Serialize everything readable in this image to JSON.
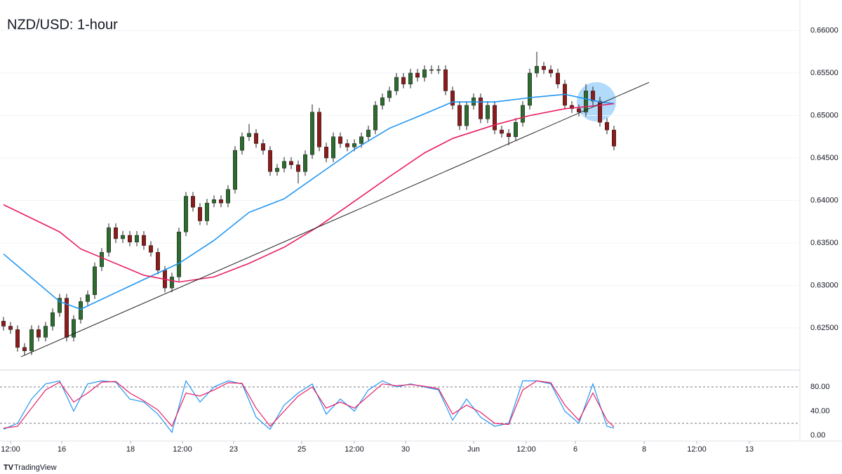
{
  "header": {
    "title": "NZD/USD: 1-hour",
    "brand": "TradingView"
  },
  "chart_data": [
    {
      "type": "candlestick",
      "x_start": 0,
      "opens": [
        0.6258,
        0.6252,
        0.6248,
        0.6227,
        0.6223,
        0.6248,
        0.6239,
        0.6252,
        0.6268,
        0.6285,
        0.6239,
        0.626,
        0.6281,
        0.6289,
        0.6322,
        0.6339,
        0.6368,
        0.6355,
        0.6359,
        0.6351,
        0.6359,
        0.6347,
        0.6339,
        0.6318,
        0.6297,
        0.631,
        0.6363,
        0.6405,
        0.6392,
        0.6376,
        0.6397,
        0.6401,
        0.6397,
        0.6413,
        0.6459,
        0.6475,
        0.6479,
        0.6467,
        0.6459,
        0.6434,
        0.6438,
        0.6446,
        0.6442,
        0.6434,
        0.6454,
        0.6504,
        0.6463,
        0.645,
        0.6475,
        0.6467,
        0.6463,
        0.6467,
        0.6475,
        0.6483,
        0.6512,
        0.6521,
        0.6529,
        0.6545,
        0.6537,
        0.655,
        0.6545,
        0.6554,
        0.6554,
        0.6554,
        0.6529,
        0.6512,
        0.6488,
        0.6512,
        0.6521,
        0.6496,
        0.6512,
        0.6483,
        0.6479,
        0.6475,
        0.6492,
        0.6512,
        0.655,
        0.6558,
        0.6554,
        0.655,
        0.6537,
        0.6512,
        0.6508,
        0.6504,
        0.6529,
        0.6517,
        0.6492,
        0.6483
      ],
      "highs": [
        0.6263,
        0.6257,
        0.6253,
        0.6232,
        0.6253,
        0.6253,
        0.6257,
        0.6273,
        0.629,
        0.629,
        0.6265,
        0.6286,
        0.6294,
        0.6327,
        0.6344,
        0.6373,
        0.6373,
        0.6364,
        0.6364,
        0.6364,
        0.6364,
        0.6352,
        0.6344,
        0.6323,
        0.6315,
        0.6368,
        0.641,
        0.641,
        0.6397,
        0.6402,
        0.6406,
        0.6406,
        0.6418,
        0.6464,
        0.648,
        0.649,
        0.6484,
        0.6472,
        0.6464,
        0.6443,
        0.6451,
        0.6451,
        0.6447,
        0.6459,
        0.6513,
        0.6509,
        0.6468,
        0.648,
        0.648,
        0.6472,
        0.6472,
        0.648,
        0.6488,
        0.6517,
        0.6526,
        0.6534,
        0.655,
        0.655,
        0.6555,
        0.6555,
        0.6559,
        0.6559,
        0.6559,
        0.6559,
        0.6534,
        0.6517,
        0.6517,
        0.6526,
        0.6526,
        0.6517,
        0.6517,
        0.6488,
        0.6484,
        0.6497,
        0.6517,
        0.6555,
        0.6575,
        0.6563,
        0.6559,
        0.6555,
        0.6542,
        0.6517,
        0.6513,
        0.6537,
        0.6534,
        0.6522,
        0.6497,
        0.6488
      ],
      "lows": [
        0.6247,
        0.6243,
        0.6222,
        0.6218,
        0.6218,
        0.6234,
        0.6234,
        0.6247,
        0.6263,
        0.6234,
        0.6234,
        0.6255,
        0.6276,
        0.6284,
        0.6317,
        0.6334,
        0.635,
        0.635,
        0.6346,
        0.6346,
        0.6342,
        0.6334,
        0.6313,
        0.6292,
        0.6292,
        0.6305,
        0.6358,
        0.6387,
        0.6371,
        0.6371,
        0.6392,
        0.6392,
        0.6392,
        0.6408,
        0.6454,
        0.647,
        0.6462,
        0.6454,
        0.6429,
        0.6429,
        0.6433,
        0.6437,
        0.642,
        0.6429,
        0.6449,
        0.6458,
        0.6445,
        0.6445,
        0.6462,
        0.6458,
        0.6458,
        0.6462,
        0.647,
        0.6478,
        0.6507,
        0.6516,
        0.6524,
        0.6532,
        0.6532,
        0.654,
        0.654,
        0.6549,
        0.6549,
        0.6524,
        0.6507,
        0.6483,
        0.6483,
        0.6507,
        0.6491,
        0.6491,
        0.6478,
        0.6474,
        0.6465,
        0.647,
        0.6487,
        0.6507,
        0.6545,
        0.6549,
        0.6545,
        0.6532,
        0.6507,
        0.6503,
        0.6499,
        0.6499,
        0.6512,
        0.6487,
        0.6478,
        0.6459
      ],
      "closes": [
        0.6252,
        0.6248,
        0.6227,
        0.6223,
        0.6248,
        0.6239,
        0.6252,
        0.6268,
        0.6285,
        0.6239,
        0.626,
        0.6281,
        0.6289,
        0.6322,
        0.6339,
        0.6368,
        0.6355,
        0.6359,
        0.6351,
        0.6359,
        0.6347,
        0.6339,
        0.6318,
        0.6297,
        0.631,
        0.6363,
        0.6405,
        0.6392,
        0.6376,
        0.6397,
        0.6401,
        0.6397,
        0.6413,
        0.6459,
        0.6475,
        0.6479,
        0.6467,
        0.6459,
        0.6434,
        0.6438,
        0.6446,
        0.6442,
        0.6434,
        0.6454,
        0.6504,
        0.6463,
        0.645,
        0.6475,
        0.6467,
        0.6463,
        0.6467,
        0.6475,
        0.6483,
        0.6512,
        0.6521,
        0.6529,
        0.6545,
        0.6537,
        0.655,
        0.6545,
        0.6554,
        0.6554,
        0.6554,
        0.6529,
        0.6512,
        0.6488,
        0.6512,
        0.6521,
        0.6496,
        0.6512,
        0.6483,
        0.6479,
        0.6475,
        0.6492,
        0.6512,
        0.655,
        0.6558,
        0.6554,
        0.655,
        0.6537,
        0.6512,
        0.6508,
        0.6504,
        0.6529,
        0.6517,
        0.6492,
        0.6483,
        0.6464
      ],
      "up_color": "#2e6b30",
      "down_color": "#8b1c1c",
      "wick_color": "#222222",
      "overlays": [
        {
          "x": [
            0,
            8,
            11,
            20,
            25,
            30,
            35,
            40,
            45,
            50,
            55,
            60,
            64,
            70,
            75,
            80,
            85,
            87
          ],
          "values": [
            0.6337,
            0.6281,
            0.6272,
            0.6307,
            0.6326,
            0.6353,
            0.6386,
            0.6402,
            0.6431,
            0.646,
            0.6485,
            0.6502,
            0.6516,
            0.6516,
            0.6521,
            0.6525,
            0.6516,
            0.6514
          ],
          "color": "#2196f3"
        },
        {
          "x": [
            0,
            8,
            11,
            20,
            25,
            30,
            35,
            40,
            45,
            50,
            55,
            60,
            64,
            70,
            75,
            80,
            85,
            87
          ],
          "values": [
            0.6395,
            0.6363,
            0.6343,
            0.6312,
            0.6304,
            0.631,
            0.6326,
            0.6345,
            0.637,
            0.6399,
            0.6428,
            0.6456,
            0.6473,
            0.6489,
            0.65,
            0.6508,
            0.6512,
            0.6514
          ],
          "color": "#e91e63"
        },
        {
          "x": [
            2.5,
            92
          ],
          "values": [
            0.6216,
            0.6539
          ],
          "color": "#222222"
        }
      ],
      "xlim": [
        -0.5,
        113.5
      ],
      "ylim": [
        0.6202,
        0.6636
      ],
      "yticks": [
        {
          "value": 0.625,
          "label": "0.62500"
        },
        {
          "value": 0.63,
          "label": "0.63000"
        },
        {
          "value": 0.635,
          "label": "0.63500"
        },
        {
          "value": 0.64,
          "label": "0.64000"
        },
        {
          "value": 0.645,
          "label": "0.64500"
        },
        {
          "value": 0.65,
          "label": "0.65000"
        },
        {
          "value": 0.655,
          "label": "0.65500"
        },
        {
          "value": 0.66,
          "label": "0.66000"
        }
      ]
    },
    {
      "type": "line",
      "x": [
        0,
        2,
        4,
        6,
        8,
        10,
        12,
        14,
        16,
        18,
        20,
        22,
        24,
        26,
        28,
        30,
        32,
        34,
        36,
        38,
        40,
        42,
        44,
        46,
        48,
        50,
        52,
        54,
        56,
        58,
        60,
        62,
        64,
        66,
        68,
        70,
        72,
        74,
        76,
        78,
        80,
        82,
        84,
        86,
        87
      ],
      "series": [
        {
          "color": "#2196f3",
          "values": [
            10,
            20,
            60,
            85,
            90,
            40,
            85,
            90,
            88,
            60,
            55,
            35,
            5,
            90,
            55,
            80,
            90,
            85,
            30,
            10,
            50,
            70,
            85,
            35,
            60,
            40,
            75,
            90,
            80,
            85,
            80,
            75,
            25,
            60,
            30,
            15,
            20,
            90,
            90,
            85,
            40,
            20,
            85,
            15,
            12
          ]
        },
        {
          "color": "#e91e63",
          "values": [
            12,
            15,
            45,
            75,
            88,
            55,
            70,
            88,
            89,
            70,
            57,
            42,
            15,
            70,
            65,
            75,
            87,
            86,
            45,
            15,
            40,
            65,
            80,
            45,
            55,
            45,
            65,
            85,
            82,
            84,
            81,
            77,
            35,
            50,
            38,
            20,
            18,
            75,
            90,
            87,
            50,
            25,
            70,
            25,
            14
          ]
        }
      ],
      "levels": [
        80,
        20
      ],
      "xlim": [
        -0.5,
        113.5
      ],
      "ylim": [
        -9.3,
        106.7
      ],
      "yticks": [
        {
          "value": 0,
          "label": "0.00"
        },
        {
          "value": 40,
          "label": "40.00"
        },
        {
          "value": 80,
          "label": "80.00"
        }
      ],
      "xticks": [
        {
          "value": 1,
          "label": "12:00"
        },
        {
          "value": 8.3,
          "label": "16"
        },
        {
          "value": 18.1,
          "label": "18"
        },
        {
          "value": 25.5,
          "label": "12:00"
        },
        {
          "value": 32.8,
          "label": "23"
        },
        {
          "value": 42.5,
          "label": "25"
        },
        {
          "value": 50,
          "label": "12:00"
        },
        {
          "value": 57.3,
          "label": "30"
        },
        {
          "value": 67,
          "label": "Jun"
        },
        {
          "value": 74.5,
          "label": "12:00"
        },
        {
          "value": 81.5,
          "label": "6"
        },
        {
          "value": 91.3,
          "label": "8"
        },
        {
          "value": 98.8,
          "label": "12:00"
        },
        {
          "value": 106.3,
          "label": "13"
        }
      ]
    }
  ]
}
